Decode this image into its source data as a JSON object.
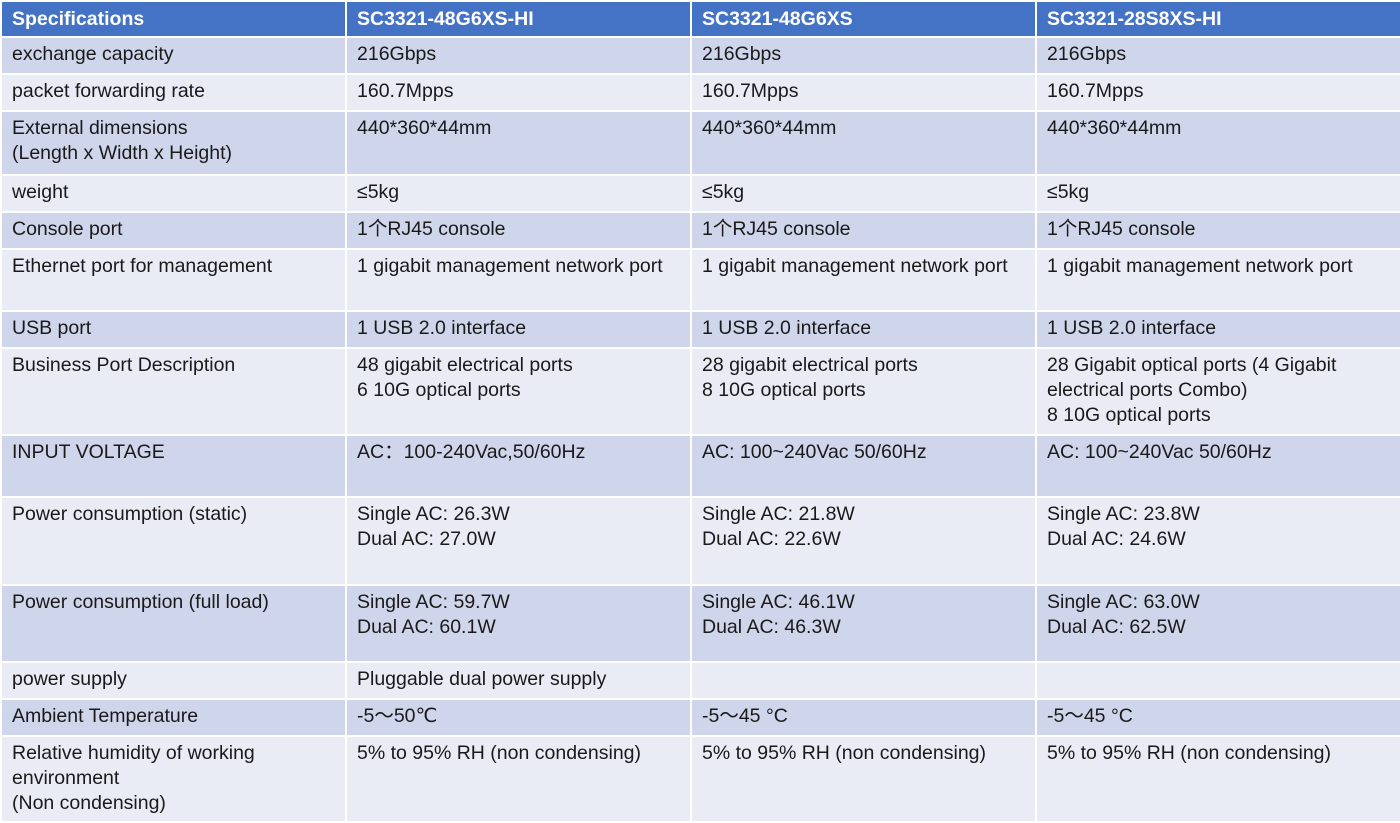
{
  "table": {
    "headers": [
      "Specifications",
      "SC3321-48G6XS-HI",
      "SC3321-48G6XS",
      "SC3321-28S8XS-HI"
    ],
    "rows": [
      [
        "exchange capacity",
        "216Gbps",
        "216Gbps",
        "216Gbps"
      ],
      [
        "packet forwarding rate",
        "160.7Mpps",
        "160.7Mpps",
        "160.7Mpps"
      ],
      [
        "External dimensions\n(Length x Width x Height)",
        "440*360*44mm",
        "440*360*44mm",
        "440*360*44mm"
      ],
      [
        "weight",
        "≤5kg",
        "≤5kg",
        "≤5kg"
      ],
      [
        "Console port",
        "1个RJ45 console",
        "1个RJ45 console",
        "1个RJ45 console"
      ],
      [
        "Ethernet port for management",
        "1 gigabit management network port",
        "1 gigabit management network port",
        "1 gigabit management network port"
      ],
      [
        "USB port",
        "1 USB 2.0 interface",
        "1 USB 2.0 interface",
        "1 USB 2.0 interface"
      ],
      [
        "Business Port Description",
        "48 gigabit electrical ports\n6 10G optical ports",
        "28 gigabit electrical ports\n8 10G optical ports",
        "28 Gigabit optical ports (4 Gigabit electrical ports Combo)\n8 10G optical ports"
      ],
      [
        "INPUT VOLTAGE",
        "AC：100-240Vac,50/60Hz",
        "AC: 100~240Vac 50/60Hz",
        "AC: 100~240Vac 50/60Hz"
      ],
      [
        "Power consumption (static)",
        "Single AC: 26.3W\nDual AC: 27.0W",
        "Single AC: 21.8W\nDual AC: 22.6W",
        "Single AC: 23.8W\nDual AC: 24.6W"
      ],
      [
        "Power consumption (full load)",
        "Single AC: 59.7W\nDual AC: 60.1W",
        "Single AC: 46.1W\nDual AC: 46.3W",
        "Single AC: 63.0W\nDual AC: 62.5W"
      ],
      [
        "power supply",
        "Pluggable dual power supply",
        "",
        ""
      ],
      [
        "Ambient Temperature",
        "-5～50℃",
        "-5～45 °C",
        "-5～45 °C"
      ],
      [
        "Relative humidity of working environment\n(Non condensing)",
        "5% to 95% RH (non condensing)",
        "5% to 95% RH (non condensing)",
        "5% to 95% RH (non condensing)"
      ]
    ]
  }
}
